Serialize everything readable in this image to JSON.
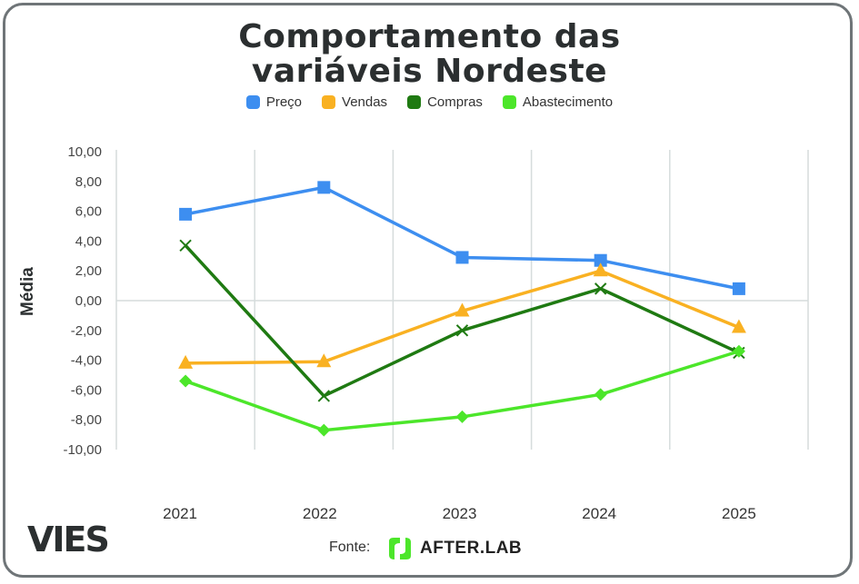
{
  "chart_data": {
    "type": "line",
    "title": "Comportamento das variáveis Nordeste",
    "title_lines": [
      "Comportamento das",
      "variáveis Nordeste"
    ],
    "xlabel": "",
    "ylabel": "Média",
    "categories": [
      "2021",
      "2022",
      "2023",
      "2024",
      "2025"
    ],
    "ylim": [
      -10,
      10
    ],
    "yticks": [
      10,
      8,
      6,
      4,
      2,
      0,
      -2,
      -4,
      -6,
      -8,
      -10
    ],
    "ytick_labels": [
      "10,00",
      "8,00",
      "6,00",
      "4,00",
      "2,00",
      "0,00",
      "-2,00",
      "-4,00",
      "-6,00",
      "-8,00",
      "-10,00"
    ],
    "grid": "vertical lines and zero line",
    "legend_position": "top",
    "series": [
      {
        "name": "Preço",
        "color": "#3d8ef0",
        "marker": "square",
        "values": [
          5.8,
          7.6,
          2.9,
          2.7,
          0.8
        ]
      },
      {
        "name": "Vendas",
        "color": "#f9b122",
        "marker": "triangle",
        "values": [
          -4.2,
          -4.1,
          -0.7,
          2.0,
          -1.8
        ]
      },
      {
        "name": "Compras",
        "color": "#1f7a12",
        "marker": "x",
        "values": [
          3.7,
          -6.4,
          -2.0,
          0.8,
          -3.5
        ]
      },
      {
        "name": "Abastecimento",
        "color": "#4ce62a",
        "marker": "diamond",
        "values": [
          -5.4,
          -8.7,
          -7.8,
          -6.3,
          -3.4
        ]
      }
    ]
  },
  "branding": {
    "logo_left": "VIES",
    "source_label": "Fonte:",
    "source_name": "AFTER.LAB",
    "source_logo_color": "#4ce62a"
  }
}
